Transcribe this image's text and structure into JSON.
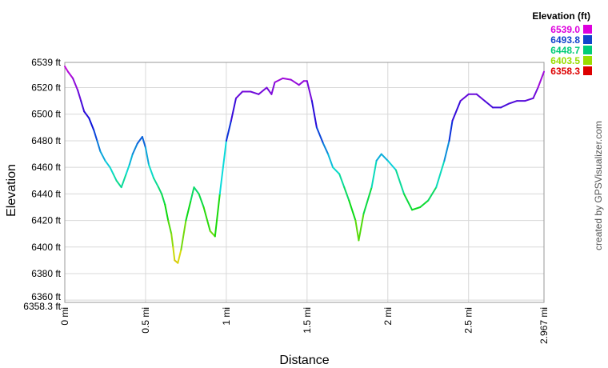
{
  "chart_data": {
    "type": "line",
    "xlabel": "Distance",
    "ylabel": "Elevation",
    "xlim": [
      0,
      2.967
    ],
    "ylim": [
      6358.3,
      6539.0
    ],
    "x_unit": "mi",
    "y_unit": "ft",
    "x_ticks": [
      {
        "value": 0,
        "label": "0 mi"
      },
      {
        "value": 0.5,
        "label": "0.5 mi"
      },
      {
        "value": 1,
        "label": "1 mi"
      },
      {
        "value": 1.5,
        "label": "1.5 mi"
      },
      {
        "value": 2,
        "label": "2 mi"
      },
      {
        "value": 2.5,
        "label": "2.5 mi"
      },
      {
        "value": 2.967,
        "label": "2.967 mi"
      }
    ],
    "y_ticks": [
      {
        "value": 6358.3,
        "label": "6358.3 ft"
      },
      {
        "value": 6360,
        "label": "6360 ft"
      },
      {
        "value": 6380,
        "label": "6380 ft"
      },
      {
        "value": 6400,
        "label": "6400 ft"
      },
      {
        "value": 6420,
        "label": "6420 ft"
      },
      {
        "value": 6440,
        "label": "6440 ft"
      },
      {
        "value": 6460,
        "label": "6460 ft"
      },
      {
        "value": 6480,
        "label": "6480 ft"
      },
      {
        "value": 6500,
        "label": "6500 ft"
      },
      {
        "value": 6520,
        "label": "6520 ft"
      },
      {
        "value": 6539,
        "label": "6539 ft"
      }
    ],
    "grid": true,
    "legend": {
      "title": "Elevation (ft)",
      "placement": "top-right",
      "entries": [
        {
          "label": "6539.0",
          "color": "#dd00dd"
        },
        {
          "label": "6493.8",
          "color": "#1144cc"
        },
        {
          "label": "6448.7",
          "color": "#00cc77"
        },
        {
          "label": "6403.5",
          "color": "#99dd00"
        },
        {
          "label": "6358.3",
          "color": "#dd0000"
        }
      ]
    },
    "series": [
      {
        "x": [
          0,
          0.02,
          0.05,
          0.08,
          0.1,
          0.12,
          0.15,
          0.18,
          0.2,
          0.22,
          0.25,
          0.28,
          0.3,
          0.32,
          0.35,
          0.38,
          0.4,
          0.42,
          0.45,
          0.48,
          0.5,
          0.52,
          0.55,
          0.58,
          0.6,
          0.62,
          0.64,
          0.66,
          0.67,
          0.68,
          0.7,
          0.72,
          0.75,
          0.78,
          0.8,
          0.83,
          0.86,
          0.9,
          0.93,
          0.96,
          1,
          1.03,
          1.06,
          1.1,
          1.15,
          1.2,
          1.25,
          1.28,
          1.3,
          1.35,
          1.4,
          1.45,
          1.48,
          1.5,
          1.53,
          1.56,
          1.6,
          1.63,
          1.66,
          1.7,
          1.73,
          1.76,
          1.8,
          1.82,
          1.85,
          1.9,
          1.93,
          1.96,
          2,
          2.05,
          2.1,
          2.15,
          2.2,
          2.25,
          2.3,
          2.35,
          2.38,
          2.4,
          2.45,
          2.5,
          2.55,
          2.6,
          2.65,
          2.7,
          2.75,
          2.8,
          2.85,
          2.9,
          2.93,
          2.967
        ],
        "y": [
          6536,
          6532,
          6527,
          6518,
          6510,
          6502,
          6497,
          6488,
          6480,
          6472,
          6465,
          6460,
          6455,
          6450,
          6445,
          6455,
          6462,
          6470,
          6478,
          6483,
          6475,
          6462,
          6452,
          6445,
          6440,
          6432,
          6420,
          6410,
          6400,
          6390,
          6388,
          6398,
          6420,
          6435,
          6445,
          6440,
          6430,
          6412,
          6408,
          6440,
          6480,
          6495,
          6512,
          6517,
          6517,
          6515,
          6520,
          6515,
          6524,
          6527,
          6526,
          6522,
          6525,
          6525,
          6510,
          6490,
          6478,
          6470,
          6460,
          6455,
          6445,
          6435,
          6420,
          6405,
          6425,
          6445,
          6465,
          6470,
          6465,
          6458,
          6440,
          6428,
          6430,
          6435,
          6445,
          6465,
          6480,
          6495,
          6510,
          6515,
          6515,
          6510,
          6505,
          6505,
          6508,
          6510,
          6510,
          6512,
          6520,
          6532
        ]
      }
    ]
  },
  "credit": "created by GPSVisualizer.com"
}
